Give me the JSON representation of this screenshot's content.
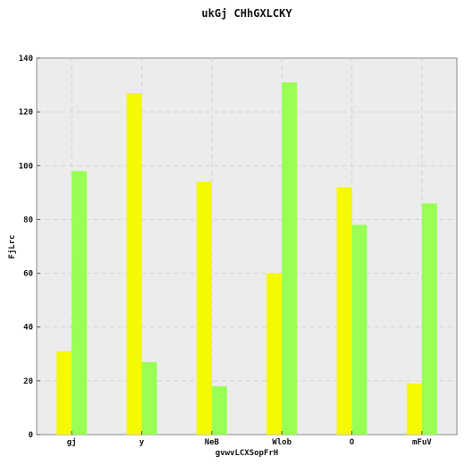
{
  "chart_data": {
    "type": "bar",
    "title": "ukGj CHhGXLCKY",
    "xlabel": "gvwvLCXSopFrH",
    "ylabel": "FjLrc",
    "categories": [
      "gj",
      "y",
      "NeB",
      "Wlob",
      "O",
      "mFuV"
    ],
    "series": [
      {
        "values": [
          31,
          127,
          94,
          60,
          92,
          19
        ],
        "color": "#f5fa00"
      },
      {
        "values": [
          98,
          27,
          18,
          131,
          78,
          86
        ],
        "color": "#99ff55"
      }
    ],
    "ylim": [
      0,
      140
    ],
    "yticks": [
      0,
      20,
      40,
      60,
      80,
      100,
      120,
      140
    ],
    "grid": true,
    "background": "#ececec"
  }
}
